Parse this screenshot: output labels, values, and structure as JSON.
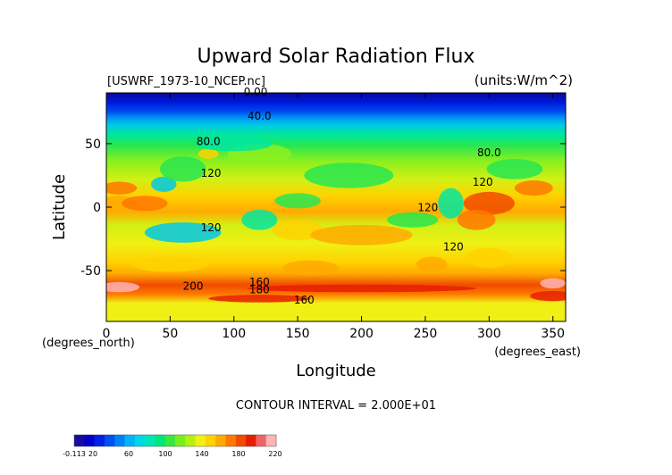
{
  "chart_data": {
    "type": "heatmap",
    "title": "Upward Solar Radiation Flux",
    "file_label": "[USWRF_1973-10_NCEP.nc]",
    "units_label": "(units:W/m^2)",
    "xlabel": "Longitude",
    "ylabel": "Latitude",
    "x_unit_label": "(degrees_east)",
    "y_unit_label": "(degrees_north)",
    "xlim": [
      0,
      360
    ],
    "ylim": [
      -90,
      90
    ],
    "x_ticks": [
      0,
      50,
      100,
      150,
      200,
      250,
      300,
      350
    ],
    "y_ticks": [
      -50,
      0,
      50
    ],
    "contour_interval_text": "CONTOUR INTERVAL = 2.000E+01",
    "contour_labels": [
      {
        "text": "0.00",
        "x": 117,
        "y": 88
      },
      {
        "text": "40.0",
        "x": 120,
        "y": 69
      },
      {
        "text": "80.0",
        "x": 80,
        "y": 49
      },
      {
        "text": "80.0",
        "x": 300,
        "y": 40
      },
      {
        "text": "120",
        "x": 82,
        "y": 24
      },
      {
        "text": "120",
        "x": 295,
        "y": 17
      },
      {
        "text": "120",
        "x": 252,
        "y": -3
      },
      {
        "text": "120",
        "x": 82,
        "y": -19
      },
      {
        "text": "120",
        "x": 272,
        "y": -34
      },
      {
        "text": "200",
        "x": 68,
        "y": -65
      },
      {
        "text": "160",
        "x": 120,
        "y": -62
      },
      {
        "text": "180",
        "x": 120,
        "y": -68
      },
      {
        "text": "160",
        "x": 155,
        "y": -76
      }
    ],
    "colorbar": {
      "tick_labels": [
        "-0.113",
        "20",
        "60",
        "100",
        "140",
        "180",
        "220"
      ],
      "min": -0.113,
      "max": 220,
      "colors": [
        "#1a0a9e",
        "#0000c8",
        "#0020e6",
        "#0050f0",
        "#0082f5",
        "#00b4f5",
        "#00d7e6",
        "#00e6b4",
        "#00e678",
        "#3ce63c",
        "#78f01e",
        "#b4f014",
        "#f0f014",
        "#ffd200",
        "#ffaa00",
        "#ff7800",
        "#f04b00",
        "#e61e00",
        "#f06464",
        "#ffb4b4"
      ]
    },
    "grid": false
  }
}
